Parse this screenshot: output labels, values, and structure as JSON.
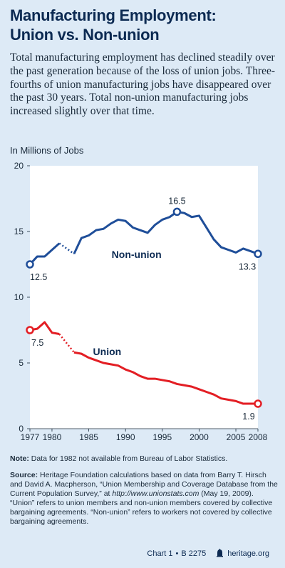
{
  "title_line1": "Manufacturing Employment:",
  "title_line2": "Union vs. Non-union",
  "subtitle": "Total manufacturing employment has declined steadily over the past generation because of the loss of union jobs. Three-fourths of union manufacturing jobs have disappeared over the past 30 years. Total non-union manufacturing jobs increased slightly over that time.",
  "colors": {
    "nonunion": "#1f4e99",
    "union": "#e31e24",
    "background": "#ddeaf6",
    "title": "#0c2a52"
  },
  "chart_data": {
    "type": "line",
    "ylabel": "In Millions of Jobs",
    "ylim": [
      0,
      20
    ],
    "xlim": [
      1977,
      2008
    ],
    "y_ticks": [
      "0",
      "5",
      "10",
      "15",
      "20"
    ],
    "x_ticks": [
      "1977",
      "1980",
      "1985",
      "1990",
      "1995",
      "2000",
      "2005",
      "2008"
    ],
    "grid": false,
    "missing_year": 1982,
    "series": [
      {
        "name": "Non-union",
        "x": [
          1977,
          1978,
          1979,
          1980,
          1981,
          1983,
          1984,
          1985,
          1986,
          1987,
          1988,
          1989,
          1990,
          1991,
          1992,
          1993,
          1994,
          1995,
          1996,
          1997,
          1998,
          1999,
          2000,
          2001,
          2002,
          2003,
          2004,
          2005,
          2006,
          2007,
          2008
        ],
        "values": [
          12.5,
          13.1,
          13.1,
          13.6,
          14.1,
          13.3,
          14.5,
          14.7,
          15.1,
          15.2,
          15.6,
          15.9,
          15.8,
          15.3,
          15.1,
          14.9,
          15.5,
          15.9,
          16.1,
          16.5,
          16.4,
          16.1,
          16.2,
          15.3,
          14.4,
          13.8,
          13.6,
          13.4,
          13.7,
          13.5,
          13.3
        ],
        "labels": [
          "12.5",
          "16.5",
          "13.3"
        ]
      },
      {
        "name": "Union",
        "x": [
          1977,
          1978,
          1979,
          1980,
          1981,
          1983,
          1984,
          1985,
          1986,
          1987,
          1988,
          1989,
          1990,
          1991,
          1992,
          1993,
          1994,
          1995,
          1996,
          1997,
          1998,
          1999,
          2000,
          2001,
          2002,
          2003,
          2004,
          2005,
          2006,
          2007,
          2008
        ],
        "values": [
          7.5,
          7.6,
          8.1,
          7.3,
          7.2,
          5.8,
          5.7,
          5.4,
          5.2,
          5.0,
          4.9,
          4.8,
          4.5,
          4.3,
          4.0,
          3.8,
          3.8,
          3.7,
          3.6,
          3.4,
          3.3,
          3.2,
          3.0,
          2.8,
          2.6,
          2.3,
          2.2,
          2.1,
          1.9,
          1.9,
          1.9
        ],
        "labels": [
          "7.5",
          "1.9"
        ]
      }
    ]
  },
  "note_label": "Note:",
  "note_text": " Data for 1982 not available from Bureau of Labor Statistics.",
  "source_label": "Source:",
  "source_text1": " Heritage Foundation calculations based on data from Barry T. Hirsch and David A. Macpherson, “Union Membership and Coverage Database from the Current Population Survey,” at ",
  "source_url": "http://www.unionstats.com",
  "source_text2": " (May 19, 2009). “Union” refers to union members and non-union members covered by collective bargaining agreements. “Non-union” refers to workers not covered by collective bargaining agreements.",
  "footer_chart": "Chart 1",
  "footer_sep": "•",
  "footer_id": "B 2275",
  "footer_site": "heritage.org"
}
